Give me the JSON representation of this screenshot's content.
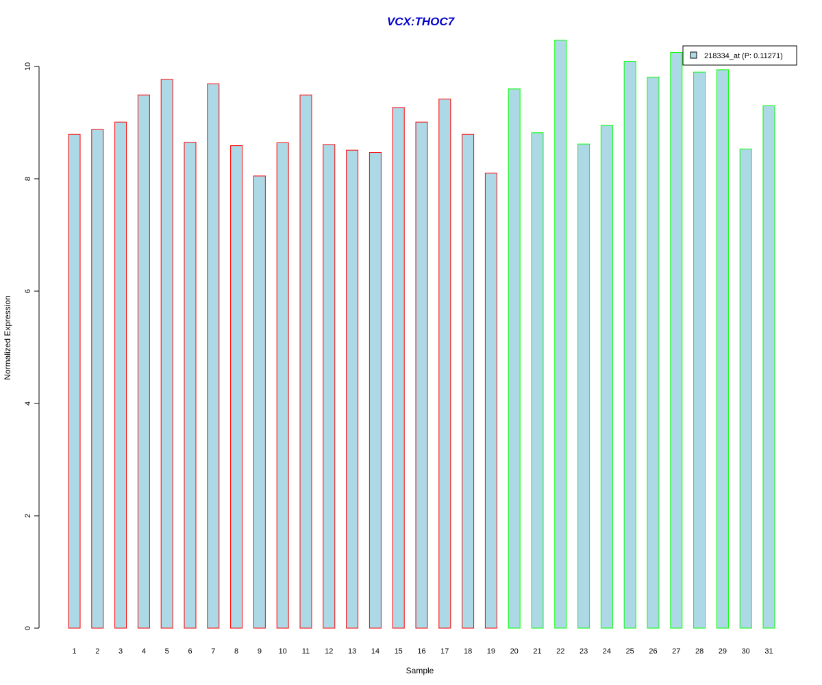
{
  "chart_data": {
    "type": "bar",
    "title": "VCX:THOC7",
    "xlabel": "Sample",
    "ylabel": "Normalized Expression",
    "ylim": [
      0,
      10.5
    ],
    "yticks": [
      0,
      2,
      4,
      6,
      8,
      10
    ],
    "grid": false,
    "legend": {
      "position": "top-right",
      "label": "218334_at (P: 0.11271)",
      "fill": "#add8e6"
    },
    "bar_fill": "#add8e6",
    "group_colors": {
      "group_1": "#ff0000",
      "group_2": "#00ff00"
    },
    "categories": [
      "1",
      "2",
      "3",
      "4",
      "5",
      "6",
      "7",
      "8",
      "9",
      "10",
      "11",
      "12",
      "13",
      "14",
      "15",
      "16",
      "17",
      "18",
      "19",
      "20",
      "21",
      "22",
      "23",
      "24",
      "25",
      "26",
      "27",
      "28",
      "29",
      "30",
      "31"
    ],
    "values": [
      8.79,
      8.88,
      9.01,
      9.49,
      9.77,
      8.65,
      9.69,
      8.59,
      8.05,
      8.64,
      9.49,
      8.61,
      8.51,
      8.47,
      9.27,
      9.01,
      9.42,
      8.79,
      8.1,
      9.6,
      8.82,
      10.47,
      8.62,
      8.95,
      10.09,
      9.81,
      10.25,
      9.9,
      9.94,
      8.53,
      9.3
    ],
    "groups": [
      1,
      1,
      1,
      1,
      1,
      1,
      1,
      1,
      1,
      1,
      1,
      1,
      1,
      1,
      1,
      1,
      1,
      1,
      1,
      2,
      2,
      2,
      2,
      2,
      2,
      2,
      2,
      2,
      2,
      2,
      2
    ]
  }
}
